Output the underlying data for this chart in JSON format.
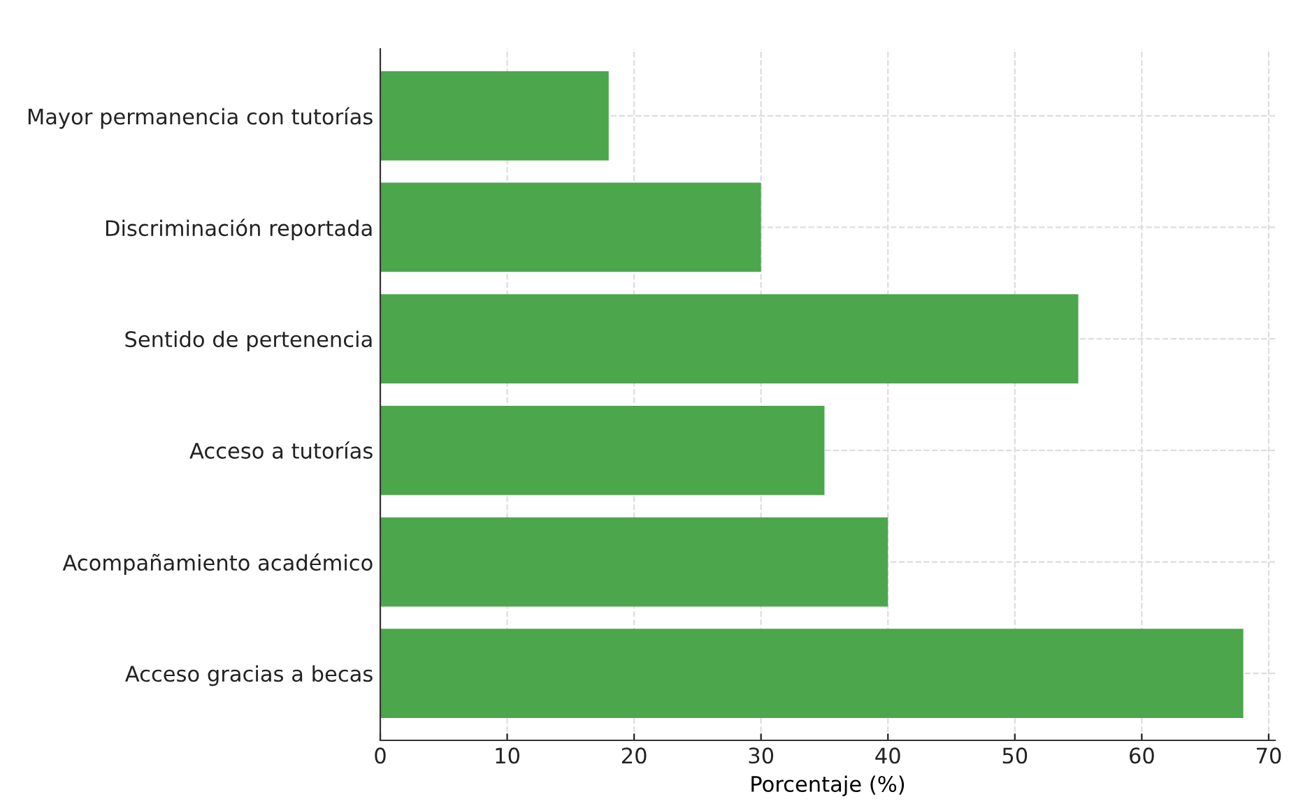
{
  "chart_data": {
    "type": "bar",
    "orientation": "horizontal",
    "xlabel": "Porcentaje (%)",
    "categories": [
      "Mayor permanencia con tutorías",
      "Discriminación reportada",
      "Sentido de pertenencia",
      "Acceso a tutorías",
      "Acompañamiento académico",
      "Acceso gracias a becas"
    ],
    "values": [
      18,
      30,
      55,
      35,
      40,
      68
    ],
    "color": "#4ca64c",
    "xlim": [
      0,
      70.5
    ],
    "xticks": [
      0,
      10,
      20,
      30,
      40,
      50,
      60,
      70
    ],
    "grid": true,
    "line_style": "dashed"
  }
}
